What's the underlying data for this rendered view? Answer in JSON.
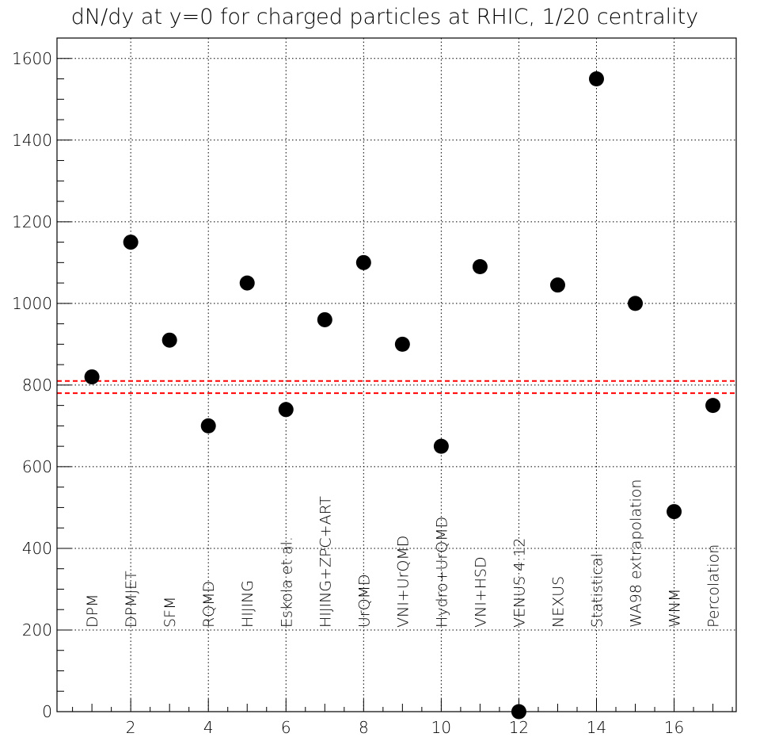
{
  "chart_data": {
    "type": "scatter",
    "title": "dN/dy at y=0 for charged particles at RHIC, 1/20 centrality",
    "xlabel": "",
    "ylabel": "",
    "xlim": [
      0.1,
      17.6
    ],
    "ylim": [
      0,
      1650
    ],
    "x_ticks": [
      2,
      4,
      6,
      8,
      10,
      12,
      14,
      16
    ],
    "y_ticks": [
      0,
      200,
      400,
      600,
      800,
      1000,
      1200,
      1400,
      1600
    ],
    "grid": true,
    "marker_color": "#000000",
    "reference_line_color": "#ff0000",
    "reference_lines": [
      780,
      810
    ],
    "points": [
      {
        "x": 1,
        "y": 820,
        "label": "DPM"
      },
      {
        "x": 2,
        "y": 1150,
        "label": "DPMJET"
      },
      {
        "x": 3,
        "y": 910,
        "label": "SFM"
      },
      {
        "x": 4,
        "y": 700,
        "label": "RQMD"
      },
      {
        "x": 5,
        "y": 1050,
        "label": "HIJING"
      },
      {
        "x": 6,
        "y": 740,
        "label": "Eskola et al."
      },
      {
        "x": 7,
        "y": 960,
        "label": "HIJING+ZPC+ART"
      },
      {
        "x": 8,
        "y": 1100,
        "label": "UrQMD"
      },
      {
        "x": 9,
        "y": 900,
        "label": "VNI+UrQMD"
      },
      {
        "x": 10,
        "y": 650,
        "label": "Hydro+UrQMD"
      },
      {
        "x": 11,
        "y": 1090,
        "label": "VNI+HSD"
      },
      {
        "x": 12,
        "y": 0,
        "label": "VENUS 4.12"
      },
      {
        "x": 13,
        "y": 1045,
        "label": "NEXUS"
      },
      {
        "x": 14,
        "y": 1550,
        "label": "Statistical"
      },
      {
        "x": 15,
        "y": 1000,
        "label": "WA98 extrapolation"
      },
      {
        "x": 16,
        "y": 490,
        "label": "WNM"
      },
      {
        "x": 17,
        "y": 750,
        "label": "Percolation"
      }
    ]
  }
}
